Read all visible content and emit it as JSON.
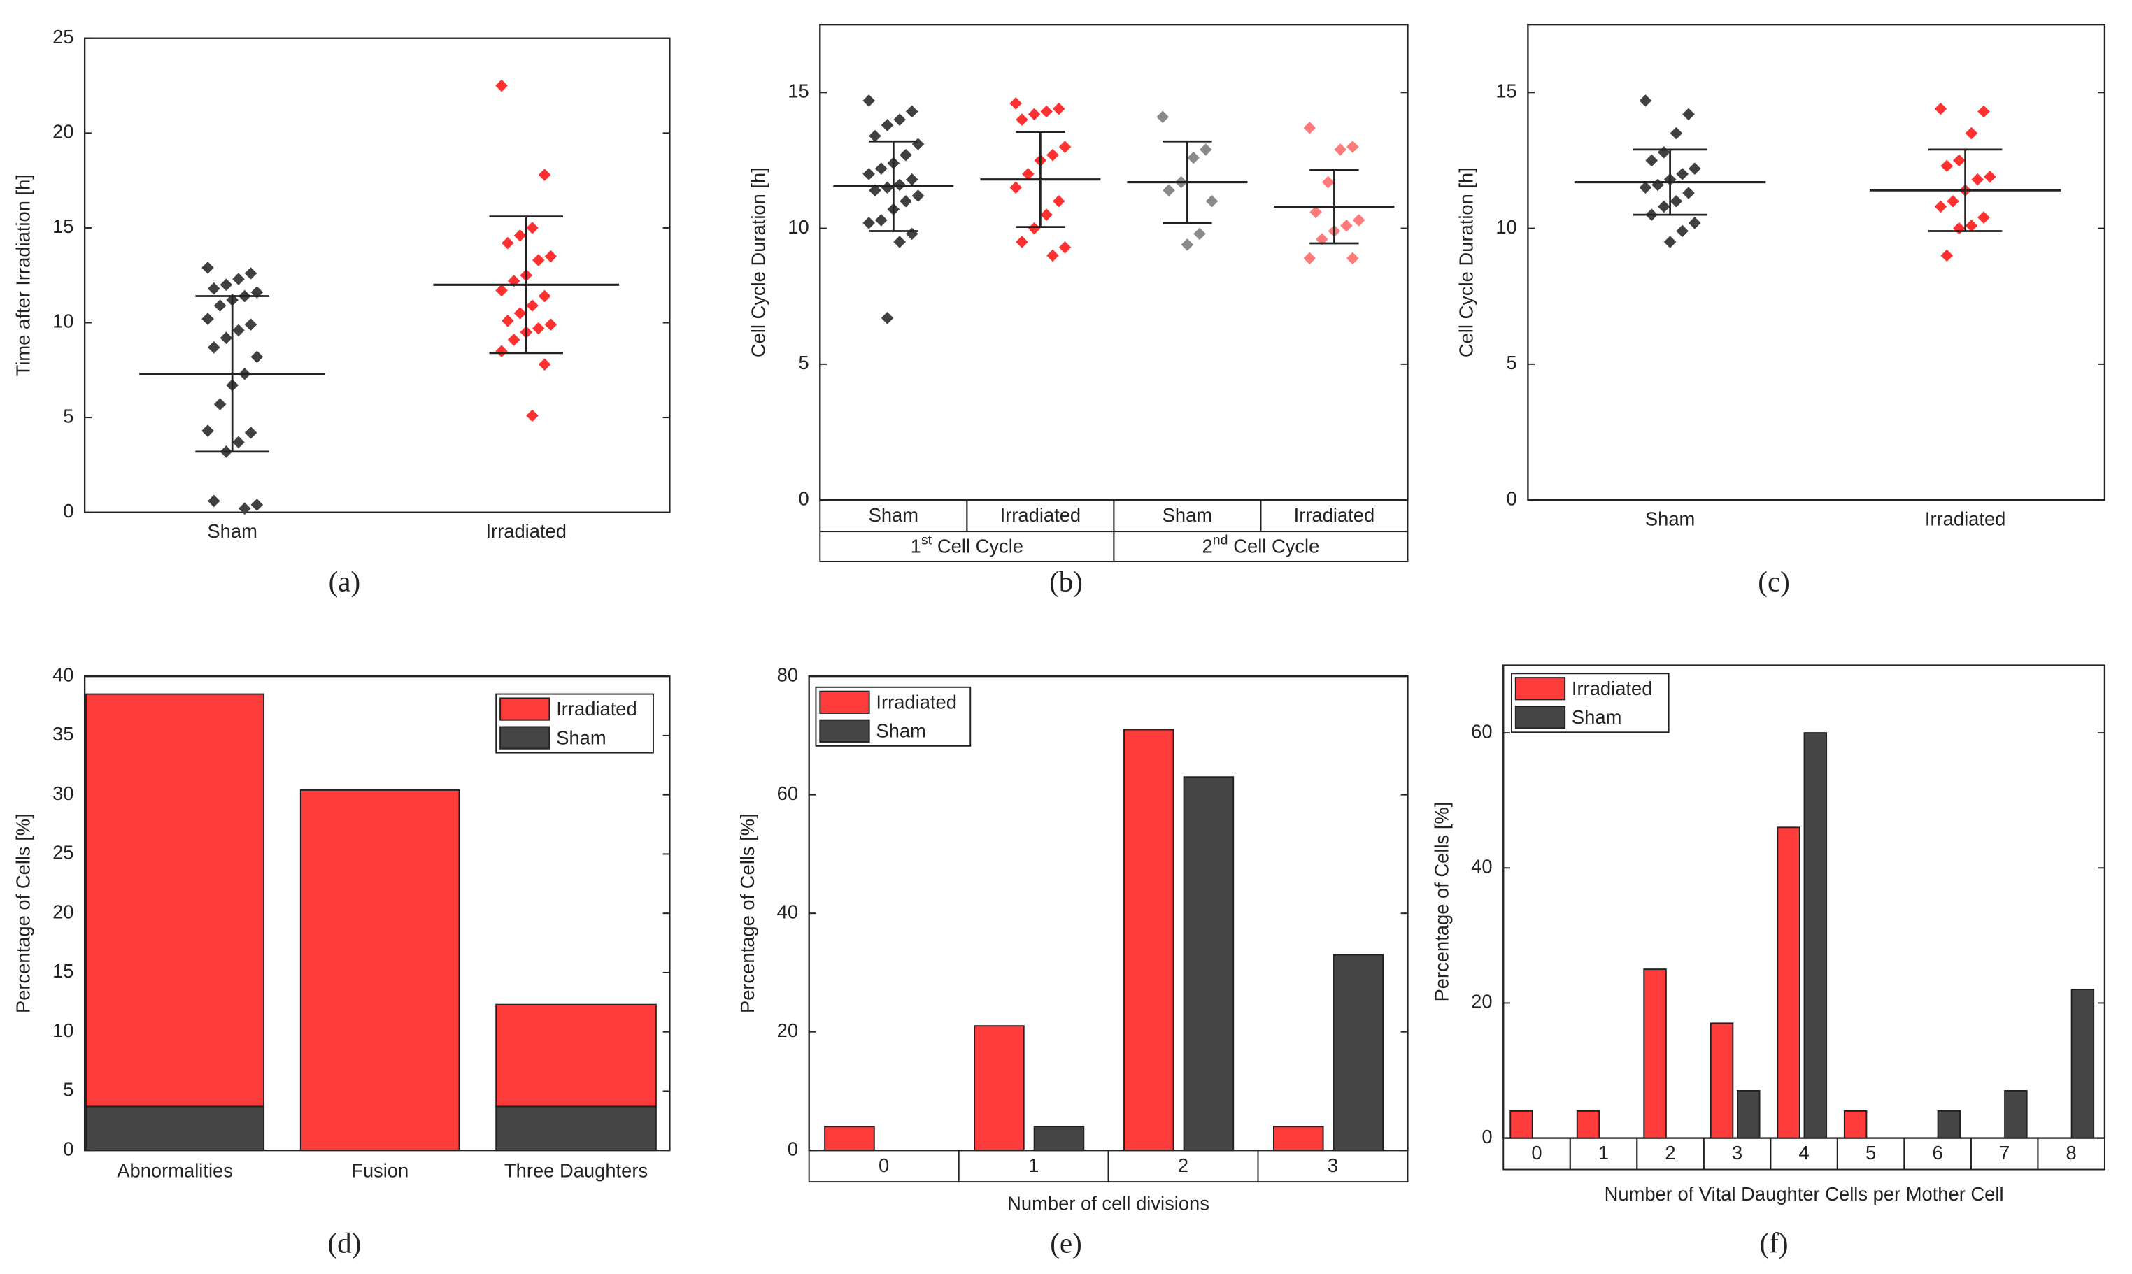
{
  "chart_data": [
    {
      "type": "strip",
      "caption": "(a)",
      "ylabel": "Time after Irradiation [h]",
      "ylim": [
        0,
        25
      ],
      "yticks": [
        0,
        5,
        10,
        15,
        20,
        25
      ],
      "categories": [
        "Sham",
        "Irradiated"
      ],
      "series": [
        {
          "color": "#404040",
          "mean": 7.3,
          "sd": 4.1,
          "values": [
            12.9,
            12.6,
            12.3,
            12.0,
            11.8,
            11.6,
            11.4,
            11.2,
            10.9,
            10.2,
            9.9,
            9.6,
            9.2,
            8.7,
            8.2,
            7.3,
            6.7,
            5.7,
            4.3,
            4.2,
            3.7,
            3.2,
            0.6,
            0.4,
            0.2
          ]
        },
        {
          "color": "#ff3030",
          "mean": 12.0,
          "sd": 3.6,
          "values": [
            22.5,
            17.8,
            15.0,
            14.6,
            14.2,
            13.5,
            13.3,
            12.5,
            12.2,
            11.7,
            11.4,
            10.9,
            10.5,
            10.1,
            9.9,
            9.7,
            9.5,
            9.1,
            8.5,
            7.8,
            5.1
          ]
        }
      ]
    },
    {
      "type": "strip",
      "caption": "(b)",
      "ylabel": "Cell Cycle Duration [h]",
      "ylim": [
        0,
        17.5
      ],
      "yticks": [
        0,
        5,
        10,
        15
      ],
      "categories": [
        "Sham",
        "Irradiated",
        "Sham",
        "Irradiated"
      ],
      "groups": [
        {
          "number": "1",
          "suffix": "st",
          "text": "Cell Cycle"
        },
        {
          "number": "2",
          "suffix": "nd",
          "text": "Cell Cycle"
        }
      ],
      "series": [
        {
          "color": "#404040",
          "mean": 11.55,
          "sd": 1.65,
          "values": [
            14.7,
            14.3,
            14.0,
            13.8,
            13.4,
            13.1,
            12.7,
            12.4,
            12.2,
            12.0,
            11.8,
            11.6,
            11.5,
            11.4,
            11.2,
            11.0,
            10.7,
            10.3,
            10.2,
            9.8,
            9.5,
            6.7
          ]
        },
        {
          "color": "#ff3030",
          "mean": 11.8,
          "sd": 1.75,
          "values": [
            14.6,
            14.4,
            14.3,
            14.2,
            14.0,
            13.0,
            12.7,
            12.5,
            12.0,
            11.5,
            11.0,
            10.5,
            10.0,
            9.5,
            9.3,
            9.0
          ]
        },
        {
          "color": "#8a8a8a",
          "mean": 11.7,
          "sd": 1.5,
          "values": [
            14.1,
            12.9,
            12.6,
            11.7,
            11.4,
            11.0,
            9.8,
            9.4
          ]
        },
        {
          "color": "#ff7b7b",
          "mean": 10.8,
          "sd": 1.35,
          "values": [
            13.7,
            13.0,
            12.9,
            11.7,
            10.6,
            10.3,
            10.1,
            9.9,
            9.6,
            8.9,
            8.9
          ]
        }
      ]
    },
    {
      "type": "strip",
      "caption": "(c)",
      "ylabel": "Cell Cycle Duration [h]",
      "ylim": [
        0,
        17.5
      ],
      "yticks": [
        0,
        5,
        10,
        15
      ],
      "categories": [
        "Sham",
        "Irradiated"
      ],
      "series": [
        {
          "color": "#404040",
          "mean": 11.7,
          "sd": 1.2,
          "values": [
            14.7,
            14.2,
            13.5,
            12.8,
            12.5,
            12.2,
            12.0,
            11.8,
            11.6,
            11.5,
            11.3,
            11.0,
            10.8,
            10.5,
            10.2,
            9.9,
            9.5
          ]
        },
        {
          "color": "#ff3030",
          "mean": 11.4,
          "sd": 1.5,
          "values": [
            14.4,
            14.3,
            13.5,
            12.5,
            12.3,
            11.9,
            11.8,
            11.4,
            11.0,
            10.8,
            10.4,
            10.1,
            10.0,
            9.0
          ]
        }
      ]
    },
    {
      "type": "stacked",
      "caption": "(d)",
      "ylabel": "Percentage of Cells [%]",
      "ylim": [
        0,
        40
      ],
      "yticks": [
        0,
        5,
        10,
        15,
        20,
        25,
        30,
        35,
        40
      ],
      "categories": [
        "Abnormalities",
        "Fusion",
        "Three Daughters"
      ],
      "series": [
        {
          "name": "Irradiated",
          "color": "#ff3c3c",
          "values": [
            34.8,
            30.4,
            8.6
          ]
        },
        {
          "name": "Sham",
          "color": "#454545",
          "values": [
            3.7,
            0,
            3.7
          ]
        }
      ]
    },
    {
      "type": "grouped",
      "caption": "(e)",
      "ylabel": "Percentage of Cells [%]",
      "xlabel": "Number of cell divisions",
      "ylim": [
        0,
        80
      ],
      "yticks": [
        0,
        20,
        40,
        60,
        80
      ],
      "categories": [
        "0",
        "1",
        "2",
        "3"
      ],
      "series": [
        {
          "name": "Irradiated",
          "color": "#ff3c3c",
          "values": [
            4,
            21,
            71,
            4
          ]
        },
        {
          "name": "Sham",
          "color": "#454545",
          "values": [
            0,
            4,
            63,
            33
          ]
        }
      ]
    },
    {
      "type": "grouped",
      "caption": "(f)",
      "ylabel": "Percentage of Cells [%]",
      "xlabel": "Number of  Vital Daughter Cells per Mother Cell",
      "ylim": [
        0,
        70
      ],
      "yticks": [
        0,
        20,
        40,
        60
      ],
      "categories": [
        "0",
        "1",
        "2",
        "3",
        "4",
        "5",
        "6",
        "7",
        "8"
      ],
      "series": [
        {
          "name": "Irradiated",
          "color": "#ff3c3c",
          "values": [
            4,
            4,
            25,
            17,
            46,
            4,
            0,
            0,
            0
          ]
        },
        {
          "name": "Sham",
          "color": "#454545",
          "values": [
            0,
            0,
            0,
            7,
            60,
            0,
            4,
            7,
            22
          ]
        }
      ]
    }
  ]
}
